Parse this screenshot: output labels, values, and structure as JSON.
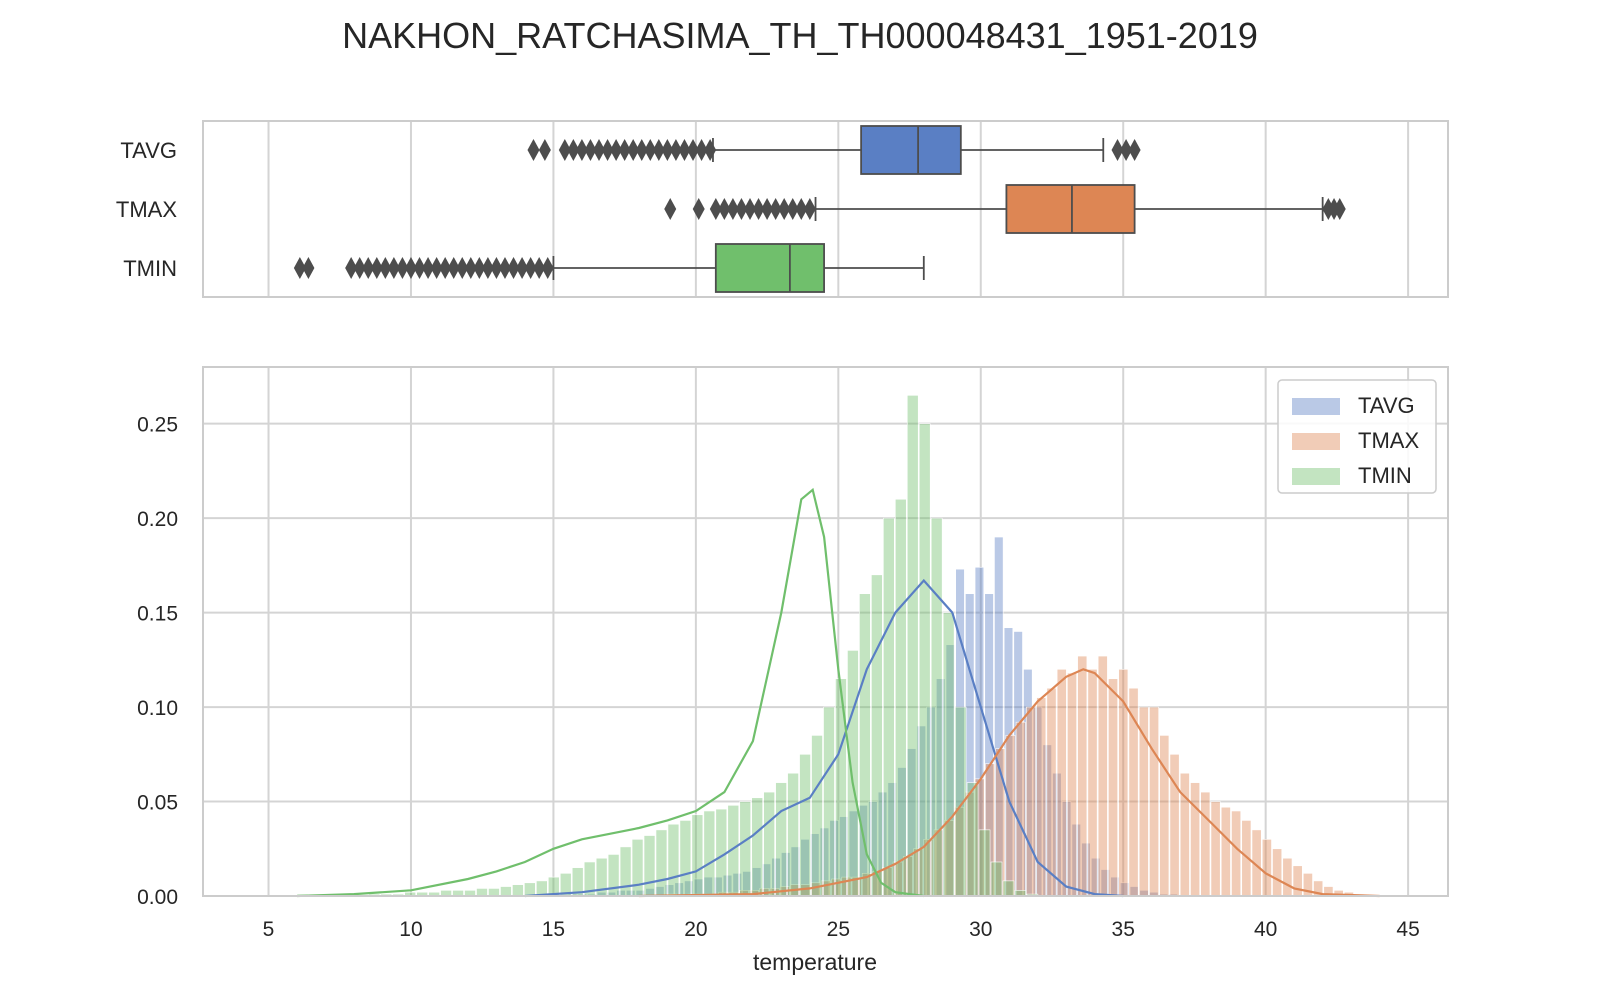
{
  "chart_data": [
    {
      "type": "box",
      "title": "NAKHON_RATCHASIMA_TH_TH000048431_1951-2019",
      "xlim": [
        2.7,
        46.4
      ],
      "grid": true,
      "categories": [
        "TAVG",
        "TMAX",
        "TMIN"
      ],
      "colors": [
        "#5a7fc4",
        "#dd8654",
        "#70bf6c"
      ],
      "boxes": [
        {
          "name": "TAVG",
          "whisker_low": 20.6,
          "q1": 25.8,
          "median": 27.8,
          "q3": 29.3,
          "whisker_high": 34.3,
          "outliers": [
            14.3,
            14.7,
            15.4,
            15.7,
            16.0,
            16.3,
            16.6,
            16.9,
            17.2,
            17.5,
            17.8,
            18.1,
            18.4,
            18.7,
            19.0,
            19.3,
            19.6,
            19.9,
            20.2,
            20.5,
            34.8,
            35.1,
            35.4
          ]
        },
        {
          "name": "TMAX",
          "whisker_low": 24.2,
          "q1": 30.9,
          "median": 33.2,
          "q3": 35.4,
          "whisker_high": 42.0,
          "outliers": [
            19.1,
            20.1,
            20.7,
            21.0,
            21.3,
            21.6,
            21.9,
            22.2,
            22.5,
            22.8,
            23.1,
            23.4,
            23.7,
            24.0,
            42.2,
            42.4,
            42.6
          ]
        },
        {
          "name": "TMIN",
          "whisker_low": 15.0,
          "q1": 20.7,
          "median": 23.3,
          "q3": 24.5,
          "whisker_high": 28.0,
          "outliers": [
            6.1,
            6.4,
            7.9,
            8.2,
            8.5,
            8.8,
            9.1,
            9.4,
            9.7,
            10.0,
            10.3,
            10.6,
            10.9,
            11.2,
            11.5,
            11.8,
            12.1,
            12.4,
            12.7,
            13.0,
            13.3,
            13.6,
            13.9,
            14.2,
            14.5,
            14.8
          ]
        }
      ]
    },
    {
      "type": "histogram",
      "xlabel": "temperature",
      "ylabel": "",
      "xlim": [
        2.7,
        46.4
      ],
      "ylim": [
        0,
        0.28
      ],
      "xticks": [
        5,
        10,
        15,
        20,
        25,
        30,
        35,
        40,
        45
      ],
      "yticks": [
        0.0,
        0.05,
        0.1,
        0.15,
        0.2,
        0.25
      ],
      "ytick_labels": [
        "0.00",
        "0.05",
        "0.10",
        "0.15",
        "0.20",
        "0.25"
      ],
      "grid": true,
      "legend_position": "top-right",
      "series": [
        {
          "name": "TAVG",
          "color": "#5a7fc4",
          "bin_start": 14.5,
          "bin_width": 0.34,
          "counts": [
            0.001,
            0.001,
            0,
            0.001,
            0.001,
            0.001,
            0.002,
            0.002,
            0.003,
            0.003,
            0.003,
            0.004,
            0.005,
            0.006,
            0.007,
            0.008,
            0.009,
            0.01,
            0.01,
            0.011,
            0.012,
            0.013,
            0.015,
            0.017,
            0.02,
            0.023,
            0.026,
            0.03,
            0.033,
            0.036,
            0.04,
            0.042,
            0.045,
            0.048,
            0.05,
            0.055,
            0.06,
            0.068,
            0.078,
            0.09,
            0.1,
            0.115,
            0.133,
            0.173,
            0.16,
            0.174,
            0.16,
            0.19,
            0.142,
            0.14,
            0.12,
            0.1,
            0.08,
            0.065,
            0.05,
            0.038,
            0.028,
            0.02,
            0.014,
            0.01,
            0.007,
            0.005,
            0.003,
            0.002,
            0.001,
            0.001
          ],
          "kde": [
            [
              14,
              0
            ],
            [
              16,
              0.002
            ],
            [
              18,
              0.006
            ],
            [
              19,
              0.009
            ],
            [
              20,
              0.013
            ],
            [
              21,
              0.022
            ],
            [
              22,
              0.032
            ],
            [
              23,
              0.045
            ],
            [
              24,
              0.052
            ],
            [
              25,
              0.075
            ],
            [
              26,
              0.12
            ],
            [
              27,
              0.15
            ],
            [
              28,
              0.167
            ],
            [
              29,
              0.15
            ],
            [
              30,
              0.1
            ],
            [
              31,
              0.05
            ],
            [
              32,
              0.018
            ],
            [
              33,
              0.005
            ],
            [
              34,
              0.001
            ],
            [
              35,
              0
            ]
          ]
        },
        {
          "name": "TMAX",
          "color": "#dd8654",
          "bin_start": 19.0,
          "bin_width": 0.36,
          "counts": [
            0.001,
            0,
            0.001,
            0.001,
            0.001,
            0.002,
            0.002,
            0.003,
            0.003,
            0.004,
            0.004,
            0.005,
            0.006,
            0.006,
            0.007,
            0.008,
            0.009,
            0.01,
            0.01,
            0.012,
            0.013,
            0.015,
            0.018,
            0.021,
            0.025,
            0.03,
            0.035,
            0.04,
            0.047,
            0.055,
            0.062,
            0.07,
            0.078,
            0.085,
            0.092,
            0.1,
            0.105,
            0.11,
            0.12,
            0.118,
            0.127,
            0.12,
            0.127,
            0.115,
            0.12,
            0.11,
            0.1,
            0.1,
            0.085,
            0.075,
            0.065,
            0.06,
            0.055,
            0.05,
            0.047,
            0.045,
            0.04,
            0.035,
            0.03,
            0.025,
            0.02,
            0.016,
            0.012,
            0.008,
            0.005,
            0.003,
            0.002,
            0.001
          ],
          "kde": [
            [
              18,
              0
            ],
            [
              22,
              0.001
            ],
            [
              24,
              0.004
            ],
            [
              26,
              0.01
            ],
            [
              27,
              0.017
            ],
            [
              28,
              0.026
            ],
            [
              29,
              0.042
            ],
            [
              30,
              0.062
            ],
            [
              31,
              0.085
            ],
            [
              32,
              0.103
            ],
            [
              33,
              0.116
            ],
            [
              33.6,
              0.12
            ],
            [
              34,
              0.118
            ],
            [
              35,
              0.103
            ],
            [
              36,
              0.078
            ],
            [
              37,
              0.055
            ],
            [
              38,
              0.04
            ],
            [
              39,
              0.025
            ],
            [
              40,
              0.012
            ],
            [
              41,
              0.004
            ],
            [
              42,
              0.001
            ],
            [
              44,
              0
            ]
          ]
        },
        {
          "name": "TMIN",
          "color": "#70bf6c",
          "bin_start": 6.0,
          "bin_width": 0.42,
          "counts": [
            0.001,
            0,
            0,
            0,
            0.001,
            0,
            0.001,
            0.001,
            0.001,
            0.002,
            0.002,
            0.002,
            0.003,
            0.003,
            0.003,
            0.004,
            0.004,
            0.005,
            0.006,
            0.007,
            0.008,
            0.01,
            0.012,
            0.015,
            0.018,
            0.02,
            0.022,
            0.026,
            0.03,
            0.032,
            0.035,
            0.038,
            0.04,
            0.043,
            0.045,
            0.046,
            0.048,
            0.05,
            0.052,
            0.055,
            0.06,
            0.065,
            0.075,
            0.085,
            0.1,
            0.115,
            0.13,
            0.16,
            0.17,
            0.2,
            0.21,
            0.265,
            0.25,
            0.2,
            0.15,
            0.1,
            0.06,
            0.035,
            0.018,
            0.008,
            0.003,
            0.001
          ],
          "kde": [
            [
              6,
              0
            ],
            [
              8,
              0.001
            ],
            [
              10,
              0.003
            ],
            [
              12,
              0.009
            ],
            [
              13,
              0.013
            ],
            [
              14,
              0.018
            ],
            [
              15,
              0.025
            ],
            [
              16,
              0.03
            ],
            [
              17,
              0.033
            ],
            [
              18,
              0.036
            ],
            [
              19,
              0.04
            ],
            [
              20,
              0.045
            ],
            [
              21,
              0.055
            ],
            [
              22,
              0.082
            ],
            [
              23,
              0.15
            ],
            [
              23.7,
              0.21
            ],
            [
              24.1,
              0.215
            ],
            [
              24.5,
              0.19
            ],
            [
              25,
              0.12
            ],
            [
              25.5,
              0.06
            ],
            [
              26,
              0.022
            ],
            [
              26.5,
              0.007
            ],
            [
              27,
              0.002
            ],
            [
              28,
              0
            ]
          ]
        }
      ]
    }
  ]
}
